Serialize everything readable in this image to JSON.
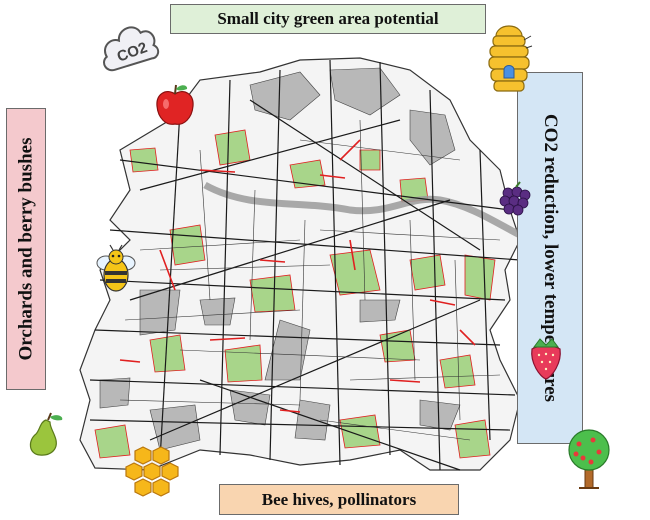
{
  "banners": {
    "top": "Small city green area potential",
    "left": "Orchards and berry bushes",
    "right": "CO2 reduction, lower temperatures",
    "bottom": "Bee hives, pollinators"
  },
  "icons": {
    "co2_cloud": {
      "name": "co2-cloud-icon",
      "label": "CO2"
    },
    "apple": {
      "name": "apple-icon"
    },
    "bee": {
      "name": "bee-icon"
    },
    "pear": {
      "name": "pear-icon"
    },
    "honeycomb": {
      "name": "honeycomb-icon"
    },
    "beehive": {
      "name": "beehive-icon"
    },
    "blackberry": {
      "name": "blackberry-icon"
    },
    "strawberry": {
      "name": "strawberry-icon"
    },
    "tree": {
      "name": "fruit-tree-icon"
    }
  },
  "colors": {
    "green_area": "#a8d58a",
    "grey_area": "#b8b8b8",
    "street": "#1a1a1a",
    "potential_edge": "#e02020",
    "river": "#9a9a9a"
  }
}
